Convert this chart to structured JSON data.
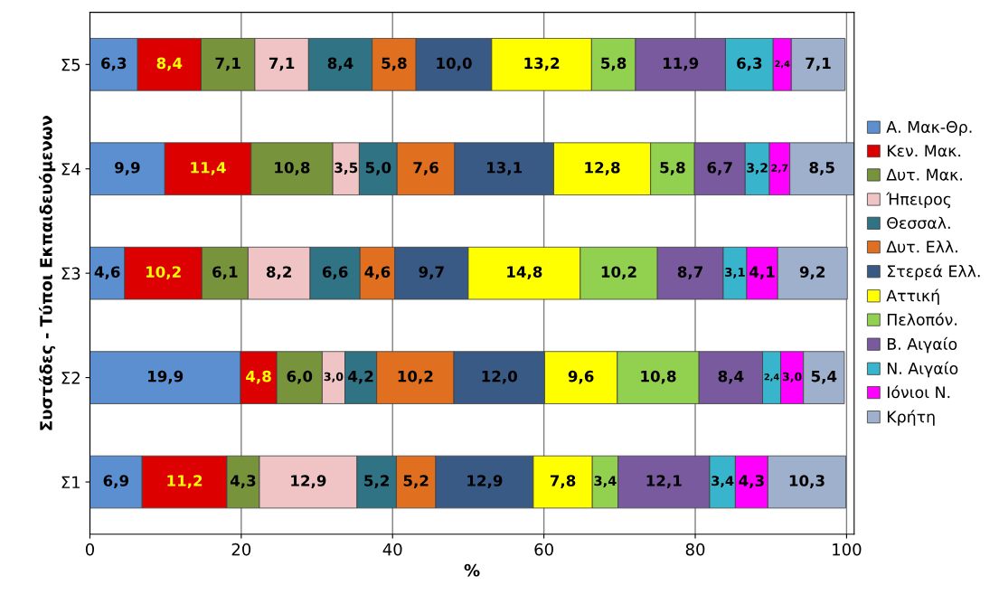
{
  "chart_data": {
    "type": "bar",
    "orientation": "horizontal",
    "stacked": true,
    "xlabel": "%",
    "ylabel": "Συστάδες - Τύποι Εκπαιδευόμενων",
    "categories": [
      "Σ5",
      "Σ4",
      "Σ3",
      "Σ2",
      "Σ1"
    ],
    "xlim": [
      0,
      101
    ],
    "xticks": [
      0,
      20,
      40,
      60,
      80,
      100
    ],
    "grid": "x",
    "legend": "right",
    "series": [
      {
        "name": "Α. Μακ-Θρ.",
        "color": "#5b8fd0",
        "values": [
          6.3,
          9.9,
          4.6,
          19.9,
          6.9
        ],
        "value_labels": [
          "6,3",
          "9,9",
          "4,6",
          "19,9",
          "6,9"
        ]
      },
      {
        "name": "Κεν. Μακ.",
        "color": "#dd0000",
        "values": [
          8.4,
          11.4,
          10.2,
          4.8,
          11.2
        ],
        "value_labels": [
          "8,4",
          "11,4",
          "10,2",
          "4,8",
          "11,2"
        ]
      },
      {
        "name": "Δυτ. Μακ.",
        "color": "#77933c",
        "values": [
          7.1,
          10.8,
          6.1,
          6.0,
          4.3
        ],
        "value_labels": [
          "7,1",
          "10,8",
          "6,1",
          "6,0",
          "4,3"
        ]
      },
      {
        "name": "Ήπειρος",
        "color": "#f0c4c4",
        "values": [
          7.1,
          3.5,
          8.2,
          3.0,
          12.9
        ],
        "value_labels": [
          "7,1",
          "3,5",
          "8,2",
          "3,0",
          "12,9"
        ]
      },
      {
        "name": "Θεσσαλ.",
        "color": "#2f7384",
        "values": [
          8.4,
          5.0,
          6.6,
          4.2,
          5.2
        ],
        "value_labels": [
          "8,4",
          "5,0",
          "6,6",
          "4,2",
          "5,2"
        ]
      },
      {
        "name": "Δυτ. Ελλ.",
        "color": "#e07020",
        "values": [
          5.8,
          7.6,
          4.6,
          10.2,
          5.2
        ],
        "value_labels": [
          "5,8",
          "7,6",
          "4,6",
          "10,2",
          "5,2"
        ]
      },
      {
        "name": "Στερεά Ελλ.",
        "color": "#3a5a86",
        "values": [
          10.0,
          13.1,
          9.7,
          12.0,
          12.9
        ],
        "value_labels": [
          "10,0",
          "13,1",
          "9,7",
          "12,0",
          "12,9"
        ]
      },
      {
        "name": "Αττική",
        "color": "#ffff00",
        "values": [
          13.2,
          12.8,
          14.8,
          9.6,
          7.8
        ],
        "value_labels": [
          "13,2",
          "12,8",
          "14,8",
          "9,6",
          "7,8"
        ]
      },
      {
        "name": "Πελοπόν.",
        "color": "#92d050",
        "values": [
          5.8,
          5.8,
          10.2,
          10.8,
          3.4
        ],
        "value_labels": [
          "5,8",
          "5,8",
          "10,2",
          "10,8",
          "3,4"
        ]
      },
      {
        "name": "Β. Αιγαίο",
        "color": "#7a5a9e",
        "values": [
          11.9,
          6.7,
          8.7,
          8.4,
          12.1
        ],
        "value_labels": [
          "11,9",
          "6,7",
          "8,7",
          "8,4",
          "12,1"
        ]
      },
      {
        "name": "Ν. Αιγαίο",
        "color": "#38b4cc",
        "values": [
          6.3,
          3.2,
          3.1,
          2.4,
          3.4
        ],
        "value_labels": [
          "6,3",
          "3,2",
          "3,1",
          "2,4",
          "3,4"
        ]
      },
      {
        "name": "Ιόνιοι Ν.",
        "color": "#ff00ff",
        "values": [
          2.4,
          2.7,
          4.1,
          3.0,
          4.3
        ],
        "value_labels": [
          "2,4",
          "2,7",
          "4,1",
          "3,0",
          "4,3"
        ]
      },
      {
        "name": "Κρήτη",
        "color": "#9fb0cc",
        "values": [
          7.1,
          8.5,
          9.2,
          5.4,
          10.3
        ],
        "value_labels": [
          "7,1",
          "8,5",
          "9,2",
          "5,4",
          "10,3"
        ]
      }
    ]
  }
}
